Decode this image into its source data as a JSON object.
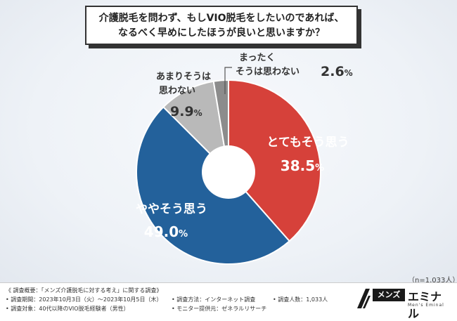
{
  "question": {
    "line1": "介護脱毛を問わず、もしVIO脱毛をしたいのであれば、",
    "line2": "なるべく早めにしたほうが良いと思いますか？"
  },
  "chart_data": {
    "type": "pie",
    "donut": true,
    "unit": "%",
    "slices": [
      {
        "label": "とてもそう思う",
        "value": 38.5,
        "color": "#d6413a"
      },
      {
        "label": "ややそう思う",
        "value": 49.0,
        "color": "#23619b"
      },
      {
        "label": "あまりそうは思わない",
        "value": 9.9,
        "color": "#b9b9b9"
      },
      {
        "label": "まったくそうは思わない",
        "value": 2.6,
        "color": "#8c8c8c"
      }
    ],
    "labels": {
      "slice0": {
        "name": "とてもそう思う",
        "value": "38.5",
        "unit": "%"
      },
      "slice1": {
        "name": "ややそう思う",
        "value": "49.0",
        "unit": "%"
      },
      "slice2": {
        "name_line1": "あまりそうは",
        "name_line2": "思わない",
        "value": "9.9",
        "unit": "%"
      },
      "slice3": {
        "name_line1": "まったく",
        "name_line2": "そうは思わない",
        "value": "2.6",
        "unit": "%"
      }
    }
  },
  "sample_size": "（n=1,033人）",
  "footer": {
    "summary": "《 調査概要：「メンズ介護脱毛に対する考え」に関する調査》",
    "period": "• 調査期間：2023年10月3日（火）〜2023年10月5日（木）",
    "target": "• 調査対象：40代以降のVIO脱毛経験者（男性）",
    "method": "• 調査方法：インターネット調査",
    "provider": "• モニター提供元：ゼネラルリサーチ",
    "count": "• 調査人数：1,033人"
  },
  "brand": {
    "box": "メンズ",
    "name": "エミナル",
    "sub": "Men's Eminal"
  }
}
